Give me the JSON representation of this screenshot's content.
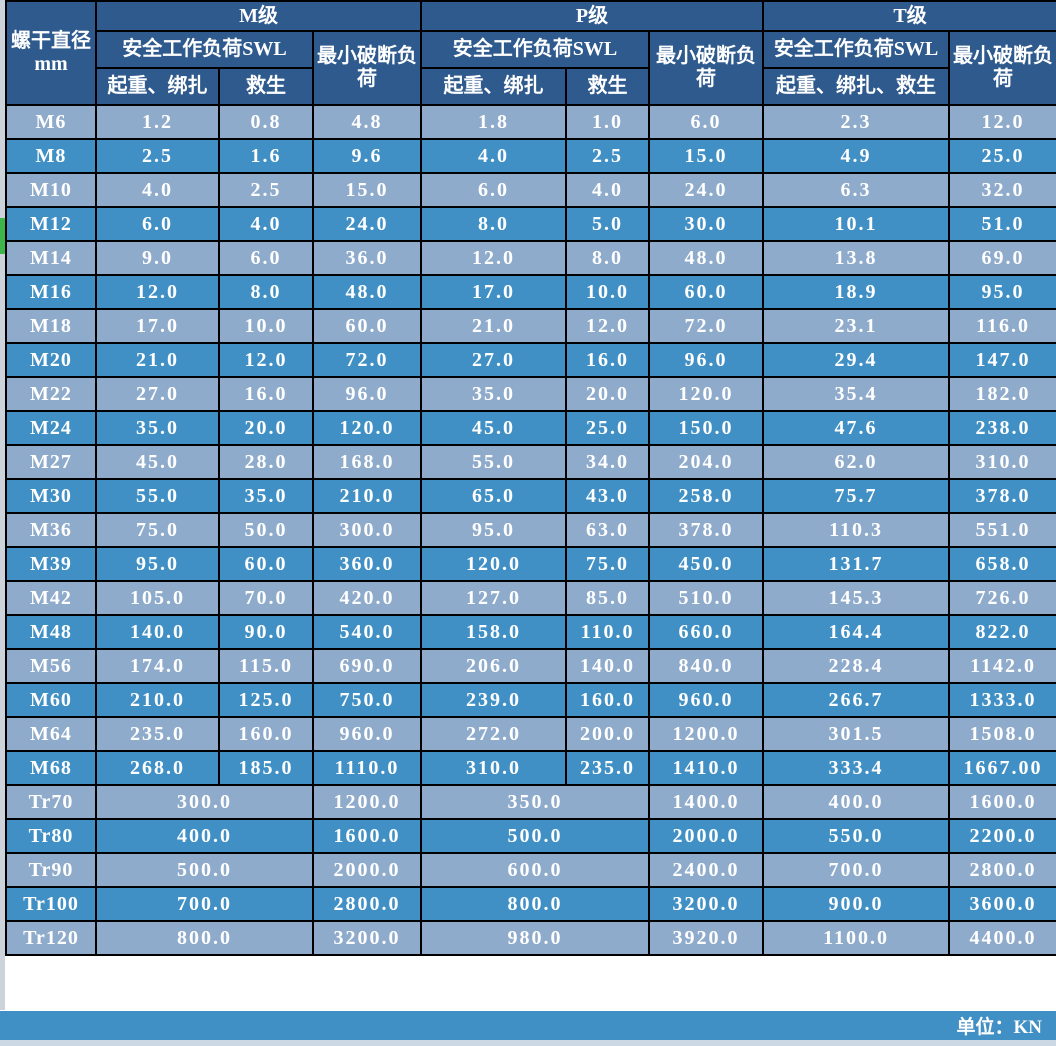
{
  "colors": {
    "header_bg": "#2e5a8e",
    "row_light": "#8fabcb",
    "row_dark": "#4190c5",
    "border": "#000000",
    "text": "#ffffff",
    "footer_bg": "#4190c5",
    "sliver_green": "#3db54a"
  },
  "table": {
    "row_header_label": "螺干直径mm",
    "unit_note": "单位：KN",
    "groups": {
      "m": {
        "name": "M级",
        "swl_label": "安全工作负荷SWL",
        "col_lift": "起重、绑扎",
        "col_life": "救生",
        "break_label": "最小破断负荷"
      },
      "p": {
        "name": "P级",
        "swl_label": "安全工作负荷SWL",
        "col_lift": "起重、绑扎",
        "col_life": "救生",
        "break_label": "最小破断负荷"
      },
      "t": {
        "name": "T级",
        "swl_label": "安全工作负荷SWL",
        "col_all": "起重、绑扎、救生",
        "break_label": "最小破断负荷"
      }
    },
    "m_rows": [
      {
        "dia": "M6",
        "values": [
          "1.2",
          "0.8",
          "4.8",
          "1.8",
          "1.0",
          "6.0",
          "2.3",
          "12.0"
        ]
      },
      {
        "dia": "M8",
        "values": [
          "2.5",
          "1.6",
          "9.6",
          "4.0",
          "2.5",
          "15.0",
          "4.9",
          "25.0"
        ]
      },
      {
        "dia": "M10",
        "values": [
          "4.0",
          "2.5",
          "15.0",
          "6.0",
          "4.0",
          "24.0",
          "6.3",
          "32.0"
        ]
      },
      {
        "dia": "M12",
        "values": [
          "6.0",
          "4.0",
          "24.0",
          "8.0",
          "5.0",
          "30.0",
          "10.1",
          "51.0"
        ]
      },
      {
        "dia": "M14",
        "values": [
          "9.0",
          "6.0",
          "36.0",
          "12.0",
          "8.0",
          "48.0",
          "13.8",
          "69.0"
        ]
      },
      {
        "dia": "M16",
        "values": [
          "12.0",
          "8.0",
          "48.0",
          "17.0",
          "10.0",
          "60.0",
          "18.9",
          "95.0"
        ]
      },
      {
        "dia": "M18",
        "values": [
          "17.0",
          "10.0",
          "60.0",
          "21.0",
          "12.0",
          "72.0",
          "23.1",
          "116.0"
        ]
      },
      {
        "dia": "M20",
        "values": [
          "21.0",
          "12.0",
          "72.0",
          "27.0",
          "16.0",
          "96.0",
          "29.4",
          "147.0"
        ]
      },
      {
        "dia": "M22",
        "values": [
          "27.0",
          "16.0",
          "96.0",
          "35.0",
          "20.0",
          "120.0",
          "35.4",
          "182.0"
        ]
      },
      {
        "dia": "M24",
        "values": [
          "35.0",
          "20.0",
          "120.0",
          "45.0",
          "25.0",
          "150.0",
          "47.6",
          "238.0"
        ]
      },
      {
        "dia": "M27",
        "values": [
          "45.0",
          "28.0",
          "168.0",
          "55.0",
          "34.0",
          "204.0",
          "62.0",
          "310.0"
        ]
      },
      {
        "dia": "M30",
        "values": [
          "55.0",
          "35.0",
          "210.0",
          "65.0",
          "43.0",
          "258.0",
          "75.7",
          "378.0"
        ]
      },
      {
        "dia": "M36",
        "values": [
          "75.0",
          "50.0",
          "300.0",
          "95.0",
          "63.0",
          "378.0",
          "110.3",
          "551.0"
        ]
      },
      {
        "dia": "M39",
        "values": [
          "95.0",
          "60.0",
          "360.0",
          "120.0",
          "75.0",
          "450.0",
          "131.7",
          "658.0"
        ]
      },
      {
        "dia": "M42",
        "values": [
          "105.0",
          "70.0",
          "420.0",
          "127.0",
          "85.0",
          "510.0",
          "145.3",
          "726.0"
        ]
      },
      {
        "dia": "M48",
        "values": [
          "140.0",
          "90.0",
          "540.0",
          "158.0",
          "110.0",
          "660.0",
          "164.4",
          "822.0"
        ]
      },
      {
        "dia": "M56",
        "values": [
          "174.0",
          "115.0",
          "690.0",
          "206.0",
          "140.0",
          "840.0",
          "228.4",
          "1142.0"
        ]
      },
      {
        "dia": "M60",
        "values": [
          "210.0",
          "125.0",
          "750.0",
          "239.0",
          "160.0",
          "960.0",
          "266.7",
          "1333.0"
        ]
      },
      {
        "dia": "M64",
        "values": [
          "235.0",
          "160.0",
          "960.0",
          "272.0",
          "200.0",
          "1200.0",
          "301.5",
          "1508.0"
        ]
      },
      {
        "dia": "M68",
        "values": [
          "268.0",
          "185.0",
          "1110.0",
          "310.0",
          "235.0",
          "1410.0",
          "333.4",
          "1667.00"
        ]
      }
    ],
    "tr_rows": [
      {
        "dia": "Tr70",
        "values": [
          "300.0",
          "1200.0",
          "350.0",
          "1400.0",
          "400.0",
          "1600.0"
        ]
      },
      {
        "dia": "Tr80",
        "values": [
          "400.0",
          "1600.0",
          "500.0",
          "2000.0",
          "550.0",
          "2200.0"
        ]
      },
      {
        "dia": "Tr90",
        "values": [
          "500.0",
          "2000.0",
          "600.0",
          "2400.0",
          "700.0",
          "2800.0"
        ]
      },
      {
        "dia": "Tr100",
        "values": [
          "700.0",
          "2800.0",
          "800.0",
          "3200.0",
          "900.0",
          "3600.0"
        ]
      },
      {
        "dia": "Tr120",
        "values": [
          "800.0",
          "3200.0",
          "980.0",
          "3920.0",
          "1100.0",
          "4400.0"
        ]
      }
    ]
  }
}
